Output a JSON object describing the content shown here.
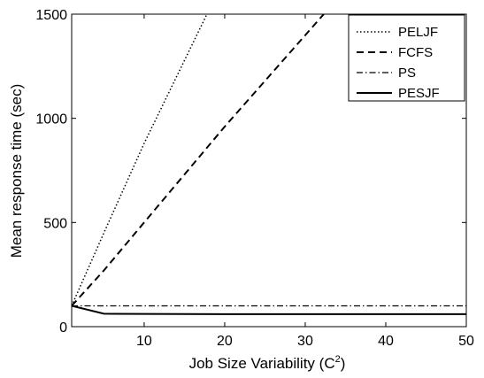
{
  "chart_data": {
    "type": "line",
    "title": "",
    "xlabel": "Job Size Variability (C",
    "xlabel_sup": "2",
    "xlabel_suffix": ")",
    "ylabel": "Mean response time (sec)",
    "xlim": [
      1,
      50
    ],
    "ylim": [
      0,
      1500
    ],
    "xticks": [
      10,
      20,
      30,
      40,
      50
    ],
    "yticks": [
      0,
      500,
      1000,
      1500
    ],
    "grid": false,
    "legend_position": "top-right",
    "series": [
      {
        "name": "PELJF",
        "style": "dotted",
        "x": [
          1,
          5,
          10,
          17.8
        ],
        "y": [
          100,
          450,
          880,
          1500
        ]
      },
      {
        "name": "FCFS",
        "style": "dashed",
        "x": [
          1,
          5,
          10,
          20,
          32.3
        ],
        "y": [
          100,
          270,
          500,
          960,
          1500
        ]
      },
      {
        "name": "PS",
        "style": "dashdot",
        "x": [
          1,
          5,
          10,
          20,
          30,
          40,
          50
        ],
        "y": [
          100,
          100,
          100,
          100,
          100,
          100,
          100
        ]
      },
      {
        "name": "PESJF",
        "style": "solid",
        "x": [
          1,
          5,
          10,
          20,
          30,
          40,
          50
        ],
        "y": [
          100,
          62,
          61,
          60,
          60,
          60,
          60
        ]
      }
    ]
  }
}
